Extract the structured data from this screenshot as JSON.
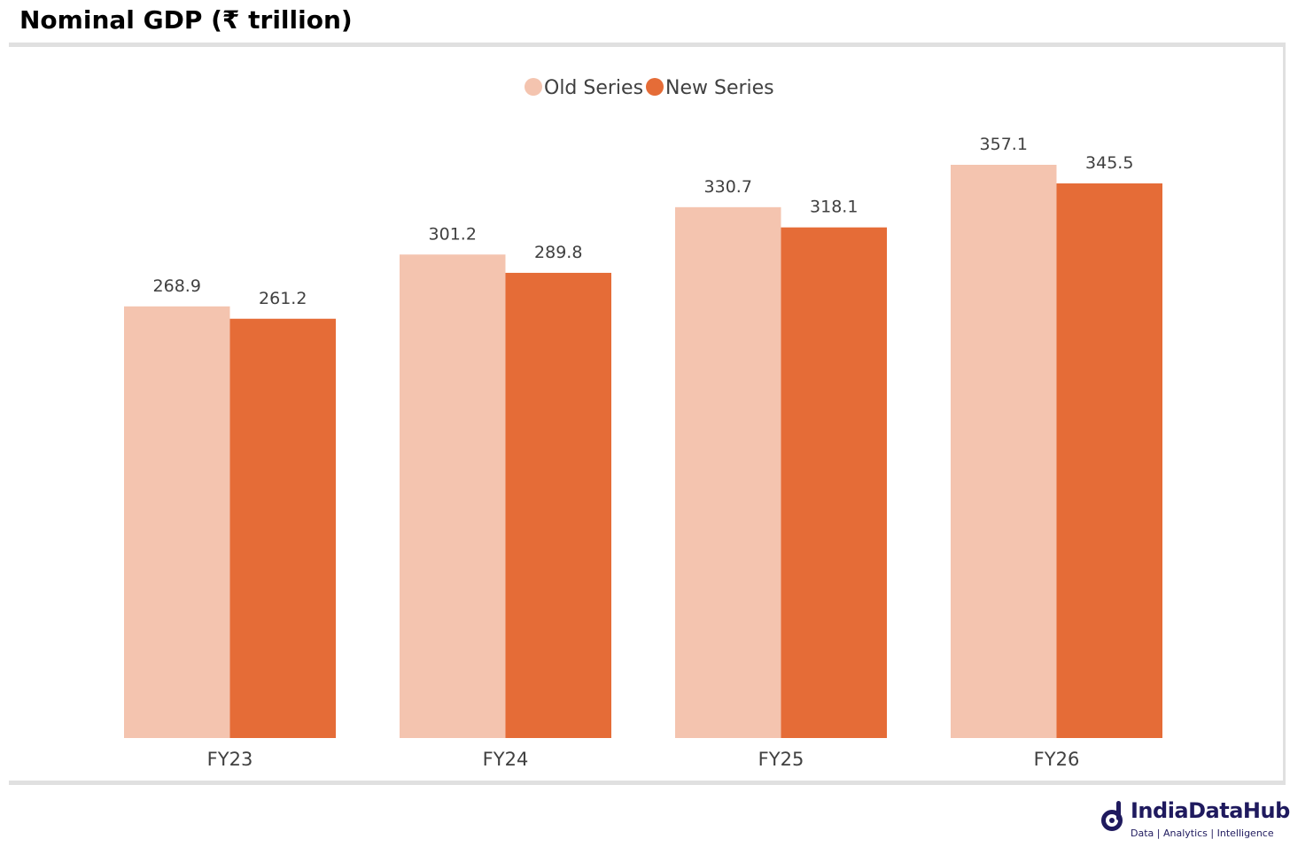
{
  "header": {
    "title": "Nominal GDP (₹ trillion)"
  },
  "brand": {
    "name": "IndiaDataHub",
    "tagline": "Data | Analytics | Intelligence",
    "logo_icon": "india-data-hub-logo-icon",
    "color": "#1f1a5e"
  },
  "chart_data": {
    "type": "bar",
    "title": "Nominal GDP (₹ trillion)",
    "categories": [
      "FY23",
      "FY24",
      "FY25",
      "FY26"
    ],
    "series": [
      {
        "name": "Old Series",
        "color": "#f4c4af",
        "values": [
          268.9,
          301.2,
          330.7,
          357.1
        ],
        "labels": [
          "268.9",
          "301.2",
          "330.7",
          "357.1"
        ]
      },
      {
        "name": "New Series",
        "color": "#e56c37",
        "values": [
          261.2,
          289.8,
          318.1,
          345.5
        ],
        "labels": [
          "261.2",
          "289.8",
          "318.1",
          "345.5"
        ]
      }
    ],
    "xlabel": "",
    "ylabel": "",
    "ylim": [
      0,
      357.1
    ],
    "grid": false,
    "legend": "top-center",
    "data_labels": true
  }
}
